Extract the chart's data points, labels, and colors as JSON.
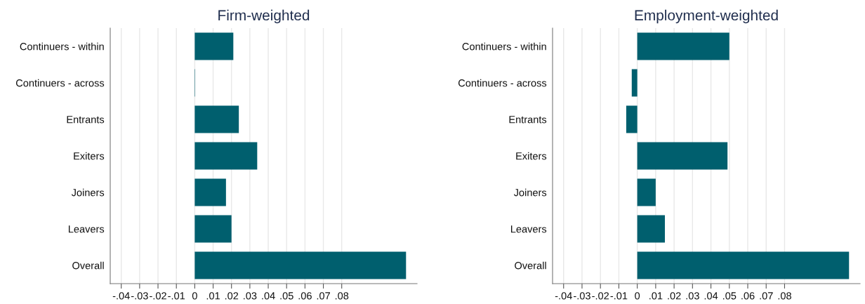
{
  "chart_data": [
    {
      "type": "bar",
      "orientation": "horizontal",
      "title": "Firm-weighted",
      "categories": [
        "Continuers - within",
        "Continuers - across",
        "Entrants",
        "Exiters",
        "Joiners",
        "Leavers",
        "Overall"
      ],
      "values": [
        0.021,
        0.0002,
        0.024,
        0.034,
        0.017,
        0.02,
        0.115
      ],
      "color": "#005f6e",
      "xlim": [
        -0.046,
        0.121
      ],
      "xticks": [
        {
          "value": -0.04,
          "label": "-.04"
        },
        {
          "value": -0.03,
          "label": "-.03"
        },
        {
          "value": -0.02,
          "label": "-.02"
        },
        {
          "value": -0.01,
          "label": "-.01"
        },
        0,
        {
          "value": 0.01,
          "label": ".01"
        },
        {
          "value": 0.02,
          "label": ".02"
        },
        {
          "value": 0.03,
          "label": ".03"
        },
        {
          "value": 0.04,
          "label": ".04"
        },
        {
          "value": 0.05,
          "label": ".05"
        },
        {
          "value": 0.06,
          "label": ".06"
        },
        {
          "value": 0.07,
          "label": ".07"
        },
        {
          "value": 0.08,
          "label": ".08"
        }
      ],
      "grid": "x"
    },
    {
      "type": "bar",
      "orientation": "horizontal",
      "title": "Employment-weighted",
      "categories": [
        "Continuers - within",
        "Continuers - across",
        "Entrants",
        "Exiters",
        "Joiners",
        "Leavers",
        "Overall"
      ],
      "values": [
        0.05,
        -0.003,
        -0.006,
        0.049,
        0.01,
        0.015,
        0.115
      ],
      "color": "#005f6e",
      "xlim": [
        -0.046,
        0.121
      ],
      "xticks": [
        {
          "value": -0.04,
          "label": "-.04"
        },
        {
          "value": -0.03,
          "label": "-.03"
        },
        {
          "value": -0.02,
          "label": "-.02"
        },
        {
          "value": -0.01,
          "label": "-.01"
        },
        0,
        {
          "value": 0.01,
          "label": ".01"
        },
        {
          "value": 0.02,
          "label": ".02"
        },
        {
          "value": 0.03,
          "label": ".03"
        },
        {
          "value": 0.04,
          "label": ".04"
        },
        {
          "value": 0.05,
          "label": ".05"
        },
        {
          "value": 0.06,
          "label": ".06"
        },
        {
          "value": 0.07,
          "label": ".07"
        },
        {
          "value": 0.08,
          "label": ".08"
        }
      ],
      "grid": "x"
    }
  ]
}
